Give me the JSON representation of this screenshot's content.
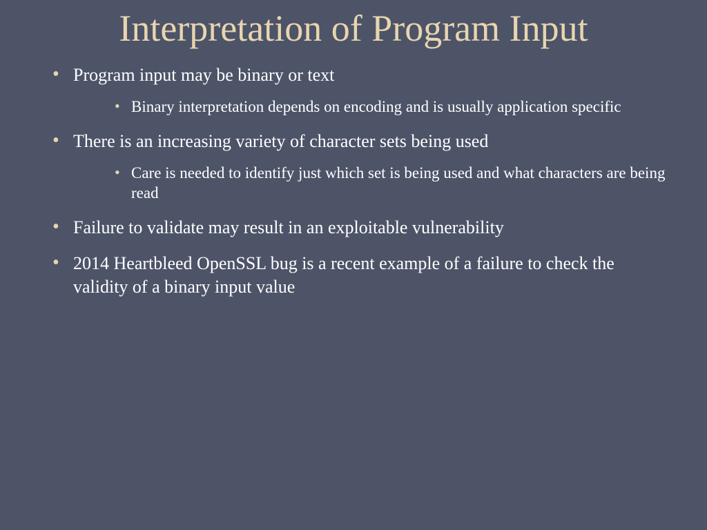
{
  "title": "Interpretation of Program Input",
  "bullets": [
    {
      "text": "Program input may be binary or text",
      "sub": "Binary interpretation depends on encoding and is usually application specific"
    },
    {
      "text": "There is an increasing variety of character sets being used",
      "sub": "Care is needed to identify just which set is being used and what characters are being read"
    },
    {
      "text": "Failure to validate may result in an exploitable vulnerability",
      "sub": null
    },
    {
      "text": "2014 Heartbleed OpenSSL bug is a recent  example of a failure to check the validity of a binary input value",
      "sub": null
    }
  ],
  "colors": {
    "background": "#4d5468",
    "title": "#e8d5b0",
    "bullet_marker": "#e8d5b0",
    "text": "#ffffff"
  },
  "typography": {
    "title_fontsize": 54,
    "main_bullet_fontsize": 26,
    "sub_bullet_fontsize": 23,
    "font_family": "Georgia serif"
  }
}
